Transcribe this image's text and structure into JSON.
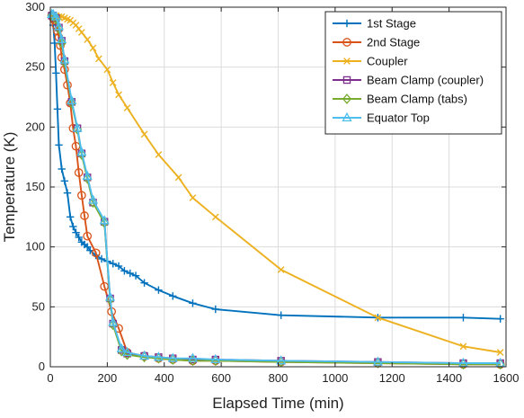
{
  "chart_data": {
    "type": "line",
    "title": "",
    "xlabel": "Elapsed Time (min)",
    "ylabel": "Temperature (K)",
    "xlim": [
      0,
      1600
    ],
    "ylim": [
      0,
      300
    ],
    "xticks": [
      0,
      200,
      400,
      600,
      800,
      1000,
      1200,
      1400,
      1600
    ],
    "yticks": [
      0,
      50,
      100,
      150,
      200,
      250,
      300
    ],
    "grid": true,
    "legend_position": "top-right",
    "series": [
      {
        "name": "1st Stage",
        "color": "#0072BD",
        "marker": "plus",
        "x": [
          5,
          10,
          15,
          20,
          25,
          30,
          40,
          50,
          60,
          70,
          80,
          90,
          100,
          110,
          120,
          130,
          140,
          160,
          180,
          200,
          220,
          240,
          260,
          280,
          300,
          330,
          380,
          430,
          500,
          580,
          810,
          1150,
          1450,
          1580
        ],
        "y": [
          293,
          285,
          270,
          245,
          215,
          185,
          165,
          155,
          145,
          125,
          117,
          112,
          108,
          104,
          102,
          100,
          97,
          93,
          90,
          88,
          86,
          84,
          80,
          78,
          76,
          70,
          64,
          59,
          53,
          48,
          43,
          41,
          41,
          40
        ]
      },
      {
        "name": "2nd Stage",
        "color": "#D95319",
        "marker": "circle",
        "x": [
          5,
          10,
          15,
          20,
          25,
          30,
          35,
          40,
          50,
          60,
          70,
          80,
          90,
          100,
          110,
          120,
          130,
          160,
          190,
          215,
          240,
          270,
          330,
          380,
          430,
          500,
          580,
          810,
          1150,
          1450,
          1580
        ],
        "y": [
          293,
          291,
          289,
          285,
          280,
          275,
          268,
          258,
          248,
          235,
          220,
          199,
          184,
          162,
          143,
          126,
          109,
          95,
          67,
          46,
          32,
          12,
          9,
          7,
          6,
          5,
          5,
          4,
          3,
          2,
          2
        ]
      },
      {
        "name": "Coupler",
        "color": "#EDB120",
        "marker": "x",
        "x": [
          5,
          10,
          20,
          30,
          40,
          50,
          60,
          70,
          80,
          90,
          100,
          110,
          130,
          150,
          170,
          200,
          220,
          240,
          270,
          330,
          380,
          450,
          500,
          580,
          810,
          1150,
          1450,
          1580
        ],
        "y": [
          293,
          293,
          293,
          292,
          292,
          291,
          290,
          289,
          287,
          285,
          282,
          279,
          273,
          266,
          257,
          248,
          237,
          227,
          216,
          194,
          177,
          158,
          141,
          125,
          81,
          41,
          17,
          12
        ]
      },
      {
        "name": "Beam Clamp (coupler)",
        "color": "#7E2F8E",
        "marker": "square",
        "x": [
          5,
          10,
          20,
          30,
          40,
          50,
          75,
          95,
          110,
          130,
          150,
          190,
          210,
          220,
          250,
          270,
          330,
          380,
          430,
          500,
          580,
          810,
          1150,
          1450,
          1580
        ],
        "y": [
          293,
          293,
          291,
          283,
          272,
          255,
          221,
          199,
          178,
          158,
          137,
          121,
          57,
          36,
          14,
          11,
          9,
          8,
          7,
          6,
          6,
          5,
          4,
          3,
          3
        ]
      },
      {
        "name": "Beam Clamp (tabs)",
        "color": "#77AC30",
        "marker": "diamond",
        "x": [
          5,
          10,
          20,
          30,
          40,
          50,
          75,
          95,
          110,
          130,
          150,
          190,
          210,
          220,
          250,
          270,
          330,
          380,
          430,
          500,
          580,
          810,
          1150,
          1450,
          1580
        ],
        "y": [
          293,
          293,
          290,
          282,
          270,
          254,
          220,
          198,
          177,
          157,
          137,
          120,
          56,
          35,
          13,
          10,
          8,
          7,
          6,
          5,
          5,
          4,
          3,
          2,
          2
        ]
      },
      {
        "name": "Equator Top",
        "color": "#4DBEEE",
        "marker": "triangle",
        "x": [
          5,
          10,
          20,
          30,
          40,
          50,
          75,
          95,
          110,
          130,
          150,
          190,
          210,
          220,
          250,
          270,
          330,
          380,
          430,
          500,
          580,
          810,
          1150,
          1450,
          1580
        ],
        "y": [
          294,
          294,
          292,
          284,
          273,
          256,
          222,
          199,
          179,
          159,
          139,
          122,
          58,
          37,
          15,
          12,
          9,
          8,
          7,
          7,
          6,
          5,
          4,
          3,
          3
        ]
      }
    ]
  }
}
